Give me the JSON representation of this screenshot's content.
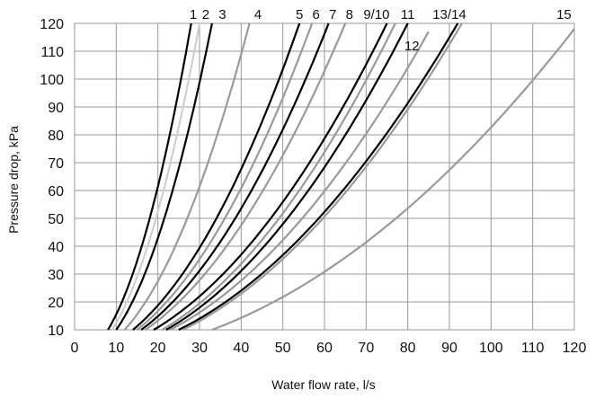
{
  "chart_data": {
    "type": "line",
    "xlabel": "Water flow rate, l/s",
    "ylabel": "Pressure drop, kPa",
    "xlim": [
      0,
      120
    ],
    "ylim": [
      10,
      120
    ],
    "x_ticks": [
      "0",
      "10",
      "20",
      "30",
      "40",
      "50",
      "60",
      "70",
      "80",
      "90",
      "100",
      "110",
      "120"
    ],
    "y_ticks": [
      "10",
      "20",
      "30",
      "40",
      "50",
      "60",
      "70",
      "80",
      "90",
      "100",
      "110",
      "120"
    ],
    "grid": true,
    "legend": "none (curves labeled along top edge)",
    "colors": {
      "black": "#000000",
      "gray": "#9a9a9a",
      "light_gray": "#cfcfcf",
      "grid": "#999999"
    },
    "series": [
      {
        "name": "1",
        "color": "black",
        "points": [
          [
            8,
            10
          ],
          [
            28,
            120
          ]
        ]
      },
      {
        "name": "2",
        "color": "light_gray",
        "points": [
          [
            9,
            10
          ],
          [
            30,
            120
          ]
        ]
      },
      {
        "name": "3",
        "color": "black",
        "points": [
          [
            10,
            10
          ],
          [
            33,
            120
          ]
        ]
      },
      {
        "name": "4",
        "color": "gray",
        "points": [
          [
            12,
            10
          ],
          [
            42,
            120
          ]
        ]
      },
      {
        "name": "5",
        "color": "black",
        "points": [
          [
            14,
            10
          ],
          [
            54,
            120
          ]
        ]
      },
      {
        "name": "6",
        "color": "gray",
        "points": [
          [
            15,
            10
          ],
          [
            57,
            120
          ]
        ]
      },
      {
        "name": "7",
        "color": "black",
        "points": [
          [
            16,
            10
          ],
          [
            61,
            120
          ]
        ]
      },
      {
        "name": "8",
        "color": "gray",
        "points": [
          [
            17,
            10
          ],
          [
            65,
            120
          ]
        ]
      },
      {
        "name": "9/10",
        "color": "black",
        "points": [
          [
            19,
            10
          ],
          [
            75,
            120
          ]
        ]
      },
      {
        "name": "9/10",
        "color": "gray",
        "points": [
          [
            21,
            10
          ],
          [
            77,
            120
          ]
        ]
      },
      {
        "name": "11",
        "color": "black",
        "points": [
          [
            22,
            10
          ],
          [
            80,
            120
          ]
        ]
      },
      {
        "name": "12",
        "color": "gray",
        "points": [
          [
            23,
            10
          ],
          [
            85,
            117
          ]
        ]
      },
      {
        "name": "13/14",
        "color": "black",
        "points": [
          [
            25,
            10
          ],
          [
            92,
            120
          ]
        ]
      },
      {
        "name": "13/14",
        "color": "gray",
        "points": [
          [
            26,
            10
          ],
          [
            93,
            120
          ]
        ]
      },
      {
        "name": "15",
        "color": "gray",
        "points": [
          [
            33,
            10
          ],
          [
            120,
            118
          ]
        ]
      }
    ],
    "curve_labels": [
      {
        "text": "1",
        "x": 28.5,
        "y": 120
      },
      {
        "text": "2",
        "x": 31.5,
        "y": 120
      },
      {
        "text": "3",
        "x": 35.5,
        "y": 120
      },
      {
        "text": "4",
        "x": 44,
        "y": 120
      },
      {
        "text": "5",
        "x": 54,
        "y": 120
      },
      {
        "text": "6",
        "x": 58,
        "y": 120
      },
      {
        "text": "7",
        "x": 62,
        "y": 120
      },
      {
        "text": "8",
        "x": 66,
        "y": 120
      },
      {
        "text": "9/10",
        "x": 72.5,
        "y": 120
      },
      {
        "text": "11",
        "x": 80,
        "y": 120
      },
      {
        "text": "12",
        "x": 81,
        "y": 112
      },
      {
        "text": "13/14",
        "x": 90,
        "y": 120
      },
      {
        "text": "15",
        "x": 117.5,
        "y": 120
      }
    ]
  }
}
